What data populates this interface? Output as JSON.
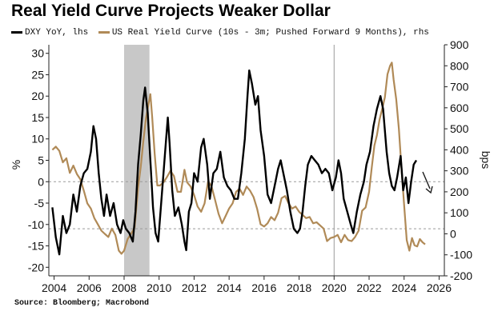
{
  "title": "Real Yield Curve Projects Weaker Dollar",
  "source": "Source: Bloomberg; Macrobond",
  "colors": {
    "dxy": "#000000",
    "real_yield": "#b08a57",
    "recession": "#c8c8c8",
    "grid": "#9a9a9a",
    "arrow": "#1a1a1a"
  },
  "chart_data": {
    "type": "line",
    "title": "Real Yield Curve Projects Weaker Dollar",
    "x_ticks": [
      "2004",
      "2006",
      "2008",
      "2010",
      "2012",
      "2014",
      "2016",
      "2018",
      "2020",
      "2022",
      "2024",
      "2026"
    ],
    "xlim": [
      2003.7,
      2026.3
    ],
    "left_axis": {
      "label": "%",
      "ylim": [
        -22,
        32
      ],
      "ticks": [
        "30",
        "25",
        "20",
        "15",
        "10",
        "5",
        "0",
        "-5",
        "-10",
        "-15",
        "-20"
      ]
    },
    "right_axis": {
      "label": "bps",
      "ylim": [
        -200,
        900
      ],
      "ticks": [
        "900",
        "800",
        "700",
        "600",
        "500",
        "400",
        "300",
        "200",
        "100",
        "0",
        "-100",
        "-200"
      ]
    },
    "recession_band": [
      2008.0,
      2009.45
    ],
    "vertical_line_x": 2020.0,
    "reference_lines_left": [
      0,
      -11
    ],
    "grid": false,
    "legend_position": "top-left",
    "series": [
      {
        "name": "DXY YoY, lhs",
        "axis": "left",
        "points": [
          [
            2003.9,
            -6
          ],
          [
            2004.1,
            -13
          ],
          [
            2004.3,
            -17
          ],
          [
            2004.5,
            -8
          ],
          [
            2004.7,
            -12
          ],
          [
            2004.9,
            -10
          ],
          [
            2005.1,
            -3
          ],
          [
            2005.3,
            -7
          ],
          [
            2005.5,
            -1
          ],
          [
            2005.7,
            2
          ],
          [
            2005.9,
            3
          ],
          [
            2006.1,
            7
          ],
          [
            2006.25,
            13
          ],
          [
            2006.4,
            10
          ],
          [
            2006.55,
            2
          ],
          [
            2006.7,
            -4
          ],
          [
            2006.85,
            -8
          ],
          [
            2007.0,
            -3
          ],
          [
            2007.2,
            -8
          ],
          [
            2007.4,
            -5
          ],
          [
            2007.6,
            -10
          ],
          [
            2007.8,
            -12
          ],
          [
            2007.95,
            -9
          ],
          [
            2008.1,
            -11
          ],
          [
            2008.3,
            -12
          ],
          [
            2008.5,
            -14
          ],
          [
            2008.65,
            -7
          ],
          [
            2008.8,
            4
          ],
          [
            2008.95,
            11
          ],
          [
            2009.1,
            19
          ],
          [
            2009.2,
            22
          ],
          [
            2009.35,
            16
          ],
          [
            2009.5,
            5
          ],
          [
            2009.65,
            -6
          ],
          [
            2009.8,
            -12
          ],
          [
            2009.95,
            -14
          ],
          [
            2010.1,
            -6
          ],
          [
            2010.25,
            2
          ],
          [
            2010.4,
            10
          ],
          [
            2010.5,
            15
          ],
          [
            2010.6,
            9
          ],
          [
            2010.75,
            -2
          ],
          [
            2010.9,
            -8
          ],
          [
            2011.1,
            -6
          ],
          [
            2011.3,
            -10
          ],
          [
            2011.45,
            -14
          ],
          [
            2011.55,
            -16
          ],
          [
            2011.7,
            -7
          ],
          [
            2011.85,
            -5
          ],
          [
            2012.0,
            2
          ],
          [
            2012.2,
            0
          ],
          [
            2012.4,
            8
          ],
          [
            2012.55,
            10
          ],
          [
            2012.75,
            4
          ],
          [
            2012.9,
            -4
          ],
          [
            2013.1,
            2
          ],
          [
            2013.3,
            3
          ],
          [
            2013.5,
            7
          ],
          [
            2013.7,
            1
          ],
          [
            2013.9,
            -1
          ],
          [
            2014.1,
            -2
          ],
          [
            2014.3,
            -4
          ],
          [
            2014.5,
            -4
          ],
          [
            2014.7,
            2
          ],
          [
            2014.9,
            10
          ],
          [
            2015.05,
            20
          ],
          [
            2015.15,
            26
          ],
          [
            2015.3,
            23
          ],
          [
            2015.5,
            18
          ],
          [
            2015.65,
            20
          ],
          [
            2015.8,
            12
          ],
          [
            2016.0,
            6
          ],
          [
            2016.2,
            -3
          ],
          [
            2016.4,
            -5
          ],
          [
            2016.6,
            -1
          ],
          [
            2016.8,
            3
          ],
          [
            2016.95,
            5
          ],
          [
            2017.1,
            2
          ],
          [
            2017.3,
            -2
          ],
          [
            2017.5,
            -7
          ],
          [
            2017.7,
            -11
          ],
          [
            2017.9,
            -12
          ],
          [
            2018.05,
            -11
          ],
          [
            2018.2,
            -7
          ],
          [
            2018.35,
            -1
          ],
          [
            2018.5,
            4
          ],
          [
            2018.7,
            6
          ],
          [
            2018.9,
            5
          ],
          [
            2019.1,
            4
          ],
          [
            2019.3,
            2
          ],
          [
            2019.5,
            3
          ],
          [
            2019.7,
            2
          ],
          [
            2019.9,
            -2
          ],
          [
            2020.1,
            1
          ],
          [
            2020.25,
            5
          ],
          [
            2020.4,
            2
          ],
          [
            2020.55,
            -4
          ],
          [
            2020.75,
            -7
          ],
          [
            2020.95,
            -10
          ],
          [
            2021.1,
            -12
          ],
          [
            2021.3,
            -7
          ],
          [
            2021.5,
            -3
          ],
          [
            2021.7,
            0
          ],
          [
            2021.85,
            4
          ],
          [
            2022.05,
            7
          ],
          [
            2022.25,
            13
          ],
          [
            2022.45,
            17
          ],
          [
            2022.65,
            20
          ],
          [
            2022.8,
            17
          ],
          [
            2023.0,
            7
          ],
          [
            2023.15,
            2
          ],
          [
            2023.3,
            -1
          ],
          [
            2023.45,
            -2
          ],
          [
            2023.6,
            1
          ],
          [
            2023.8,
            6
          ],
          [
            2023.95,
            -2
          ],
          [
            2024.1,
            1
          ],
          [
            2024.25,
            -5
          ],
          [
            2024.4,
            0
          ],
          [
            2024.55,
            4
          ],
          [
            2024.7,
            5
          ]
        ]
      },
      {
        "name": "US Real Yield Curve (10s - 3m; Pushed Forward 9 Months), rhs",
        "axis": "right",
        "points": [
          [
            2003.9,
            400
          ],
          [
            2004.1,
            415
          ],
          [
            2004.3,
            395
          ],
          [
            2004.5,
            340
          ],
          [
            2004.7,
            360
          ],
          [
            2004.9,
            290
          ],
          [
            2005.1,
            325
          ],
          [
            2005.3,
            285
          ],
          [
            2005.5,
            260
          ],
          [
            2005.7,
            205
          ],
          [
            2005.9,
            145
          ],
          [
            2006.1,
            120
          ],
          [
            2006.3,
            75
          ],
          [
            2006.5,
            45
          ],
          [
            2006.7,
            15
          ],
          [
            2006.9,
            0
          ],
          [
            2007.1,
            -15
          ],
          [
            2007.3,
            25
          ],
          [
            2007.5,
            -5
          ],
          [
            2007.7,
            -80
          ],
          [
            2007.85,
            -95
          ],
          [
            2008.0,
            -80
          ],
          [
            2008.2,
            -25
          ],
          [
            2008.4,
            0
          ],
          [
            2008.6,
            30
          ],
          [
            2008.8,
            220
          ],
          [
            2008.95,
            320
          ],
          [
            2009.1,
            440
          ],
          [
            2009.25,
            550
          ],
          [
            2009.4,
            620
          ],
          [
            2009.5,
            665
          ],
          [
            2009.6,
            560
          ],
          [
            2009.75,
            380
          ],
          [
            2009.9,
            230
          ],
          [
            2010.05,
            230
          ],
          [
            2010.25,
            245
          ],
          [
            2010.45,
            270
          ],
          [
            2010.65,
            300
          ],
          [
            2010.85,
            275
          ],
          [
            2011.05,
            200
          ],
          [
            2011.25,
            200
          ],
          [
            2011.45,
            305
          ],
          [
            2011.6,
            245
          ],
          [
            2011.8,
            225
          ],
          [
            2012.0,
            185
          ],
          [
            2012.2,
            130
          ],
          [
            2012.4,
            105
          ],
          [
            2012.6,
            145
          ],
          [
            2012.8,
            250
          ],
          [
            2013.0,
            225
          ],
          [
            2013.2,
            160
          ],
          [
            2013.4,
            95
          ],
          [
            2013.6,
            50
          ],
          [
            2013.8,
            85
          ],
          [
            2014.0,
            120
          ],
          [
            2014.2,
            145
          ],
          [
            2014.4,
            200
          ],
          [
            2014.6,
            215
          ],
          [
            2014.8,
            185
          ],
          [
            2015.0,
            225
          ],
          [
            2015.2,
            205
          ],
          [
            2015.4,
            175
          ],
          [
            2015.6,
            120
          ],
          [
            2015.8,
            45
          ],
          [
            2016.0,
            35
          ],
          [
            2016.2,
            50
          ],
          [
            2016.4,
            80
          ],
          [
            2016.6,
            65
          ],
          [
            2016.8,
            100
          ],
          [
            2017.0,
            170
          ],
          [
            2017.2,
            180
          ],
          [
            2017.4,
            145
          ],
          [
            2017.6,
            120
          ],
          [
            2017.8,
            130
          ],
          [
            2018.0,
            105
          ],
          [
            2018.2,
            90
          ],
          [
            2018.4,
            75
          ],
          [
            2018.6,
            80
          ],
          [
            2018.8,
            50
          ],
          [
            2019.0,
            55
          ],
          [
            2019.2,
            40
          ],
          [
            2019.4,
            25
          ],
          [
            2019.6,
            -35
          ],
          [
            2019.8,
            -20
          ],
          [
            2020.0,
            -15
          ],
          [
            2020.2,
            -5
          ],
          [
            2020.4,
            -40
          ],
          [
            2020.6,
            -5
          ],
          [
            2020.8,
            -30
          ],
          [
            2021.0,
            -35
          ],
          [
            2021.2,
            -15
          ],
          [
            2021.4,
            15
          ],
          [
            2021.6,
            110
          ],
          [
            2021.8,
            125
          ],
          [
            2022.0,
            200
          ],
          [
            2022.15,
            315
          ],
          [
            2022.3,
            420
          ],
          [
            2022.45,
            470
          ],
          [
            2022.6,
            545
          ],
          [
            2022.75,
            595
          ],
          [
            2022.9,
            650
          ],
          [
            2023.05,
            760
          ],
          [
            2023.2,
            800
          ],
          [
            2023.3,
            815
          ],
          [
            2023.4,
            735
          ],
          [
            2023.55,
            640
          ],
          [
            2023.7,
            500
          ],
          [
            2023.85,
            315
          ],
          [
            2024.0,
            140
          ],
          [
            2024.15,
            -30
          ],
          [
            2024.3,
            -80
          ],
          [
            2024.45,
            -20
          ],
          [
            2024.6,
            -55
          ],
          [
            2024.75,
            -60
          ],
          [
            2024.9,
            -25
          ],
          [
            2025.05,
            -40
          ],
          [
            2025.2,
            -50
          ]
        ]
      }
    ]
  }
}
